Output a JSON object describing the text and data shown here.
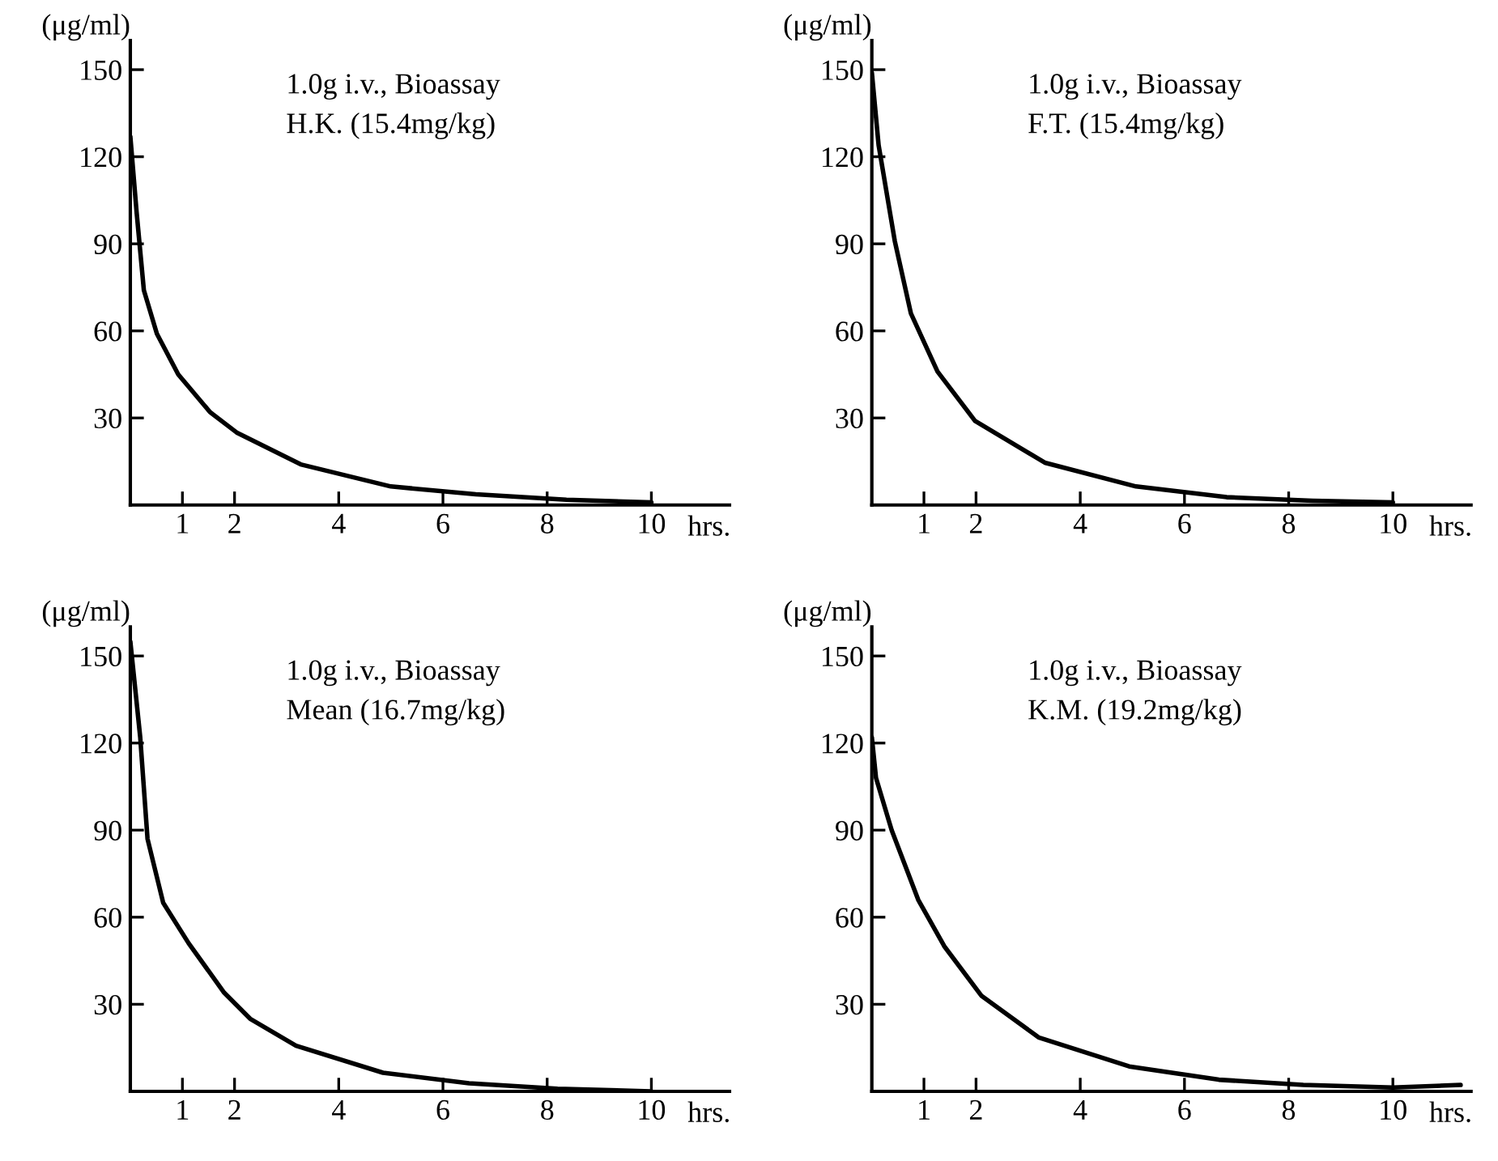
{
  "chart_data": [
    {
      "type": "line",
      "annotations": [
        "1.0g i.v., Bioassay",
        "H.K. (15.4mg/kg)"
      ],
      "xlabel": "hrs.",
      "ylabel": "(μg/ml)",
      "series": [
        {
          "color": "#000000",
          "x": [
            0,
            0.12,
            0.26,
            0.51,
            0.92,
            1.53,
            2.04,
            3.27,
            5.0,
            6.63,
            8.37,
            10
          ],
          "values": [
            127,
            101,
            74,
            59,
            45,
            32,
            25,
            14,
            6.4,
            3.7,
            1.8,
            0.9
          ]
        }
      ],
      "xlim": [
        0,
        11.5
      ],
      "ylim": [
        0,
        160
      ],
      "xticks": [
        1,
        2,
        4,
        6,
        8,
        10
      ],
      "yticks": [
        30,
        60,
        90,
        120,
        150
      ]
    },
    {
      "type": "line",
      "annotations": [
        "1.0g i.v., Bioassay",
        "F.T. (15.4mg/kg)"
      ],
      "xlabel": "hrs.",
      "ylabel": "(μg/ml)",
      "series": [
        {
          "color": "#000000",
          "x": [
            0,
            0.13,
            0.44,
            0.75,
            1.26,
            1.98,
            3.32,
            5.07,
            6.81,
            8.46,
            10
          ],
          "values": [
            149,
            124,
            91,
            66,
            46,
            29,
            14.6,
            6.4,
            2.7,
            1.5,
            0.9
          ]
        }
      ],
      "xlim": [
        0,
        11.5
      ],
      "ylim": [
        0,
        160
      ],
      "xticks": [
        1,
        2,
        4,
        6,
        8,
        10
      ],
      "yticks": [
        30,
        60,
        90,
        120,
        150
      ]
    },
    {
      "type": "line",
      "annotations": [
        "1.0g i.v., Bioassay",
        "Mean (16.7mg/kg)"
      ],
      "xlabel": "hrs.",
      "ylabel": "(μg/ml)",
      "series": [
        {
          "color": "#000000",
          "x": [
            0,
            0.19,
            0.33,
            0.63,
            1.12,
            1.8,
            2.3,
            3.18,
            4.85,
            6.5,
            8.2,
            10
          ],
          "values": [
            155,
            122,
            87,
            65,
            51,
            34,
            25,
            15.7,
            6.4,
            2.8,
            0.9,
            0
          ]
        }
      ],
      "xlim": [
        0,
        11.5
      ],
      "ylim": [
        0,
        160
      ],
      "xticks": [
        1,
        2,
        4,
        6,
        8,
        10
      ],
      "yticks": [
        30,
        60,
        90,
        120,
        150
      ]
    },
    {
      "type": "line",
      "annotations": [
        "1.0g i.v., Bioassay",
        "K.M. (19.2mg/kg)"
      ],
      "xlabel": "hrs.",
      "ylabel": "(μg/ml)",
      "series": [
        {
          "color": "#000000",
          "x": [
            0,
            0.08,
            0.38,
            0.89,
            1.39,
            2.1,
            3.2,
            4.94,
            6.66,
            8.28,
            10,
            11.3
          ],
          "values": [
            122,
            108,
            90,
            66,
            50,
            33,
            18.6,
            8.6,
            4.0,
            2.2,
            1.3,
            2.2
          ]
        }
      ],
      "xlim": [
        0,
        11.5
      ],
      "ylim": [
        0,
        160
      ],
      "xticks": [
        1,
        2,
        4,
        6,
        8,
        10
      ],
      "yticks": [
        30,
        60,
        90,
        120,
        150
      ]
    }
  ]
}
